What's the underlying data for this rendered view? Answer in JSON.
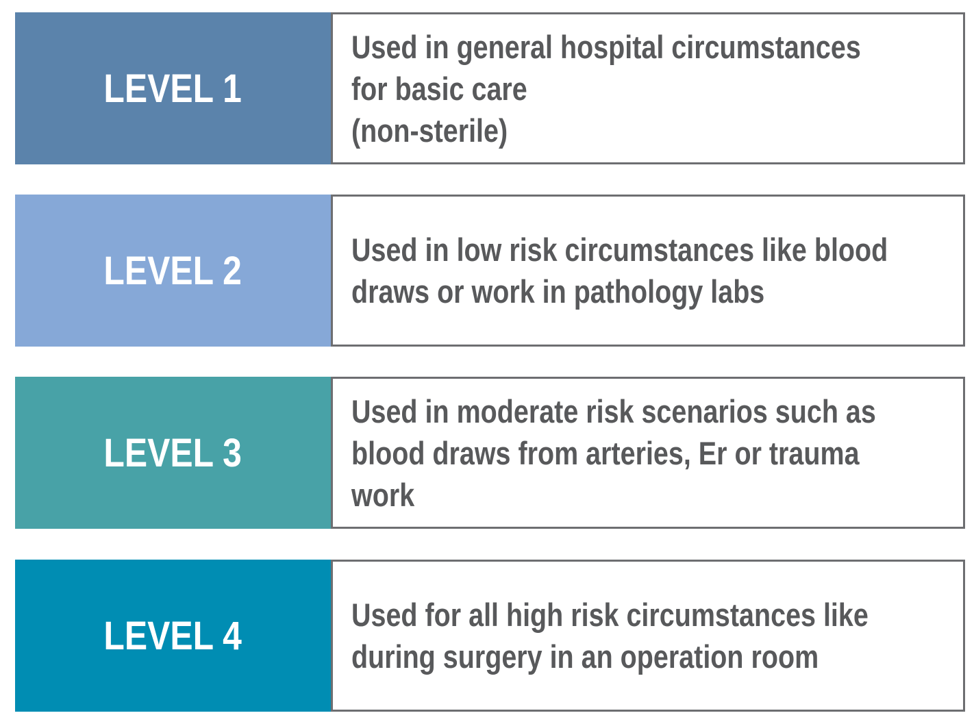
{
  "levels": [
    {
      "label": "LEVEL 1",
      "color": "#5b83ab",
      "description_lines": [
        "Used in general hospital circumstances",
        "for basic care",
        "(non-sterile)"
      ]
    },
    {
      "label": "LEVEL 2",
      "color": "#86a8d7",
      "description_lines": [
        "Used in low risk circumstances like blood",
        "draws or work in pathology labs"
      ]
    },
    {
      "label": "LEVEL 3",
      "color": "#48a2a7",
      "description_lines": [
        "Used in moderate risk scenarios such as",
        "blood draws from arteries, Er or trauma",
        "work"
      ]
    },
    {
      "label": "LEVEL 4",
      "color": "#008db3",
      "description_lines": [
        "Used for all high risk circumstances like",
        "during surgery in an operation room"
      ]
    }
  ],
  "border_color": "#6d6e71",
  "text_color": "#58595b"
}
